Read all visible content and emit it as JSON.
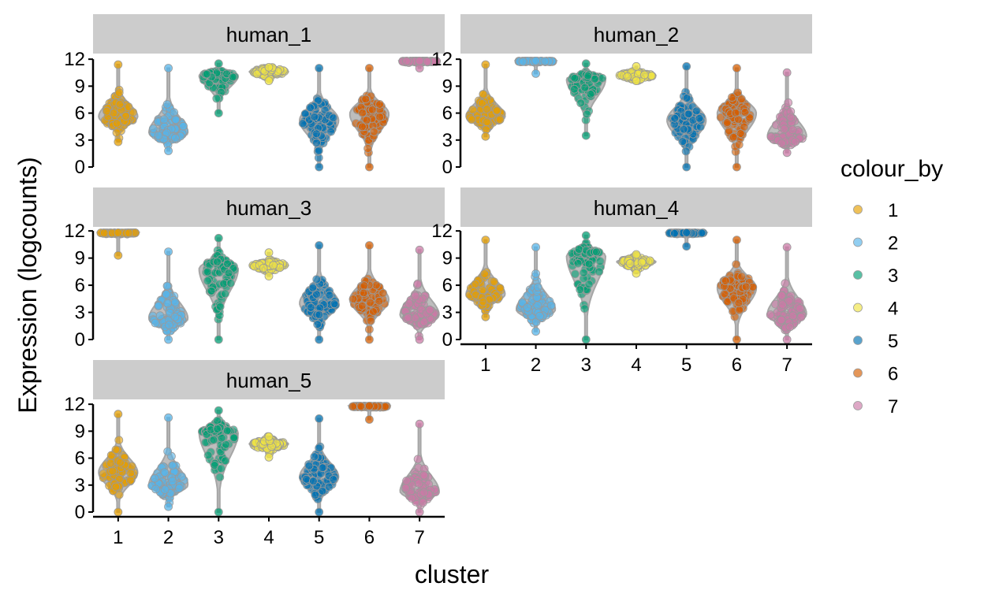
{
  "chart_data": {
    "type": "violin",
    "xlabel": "cluster",
    "ylabel": "Expression (logcounts)",
    "categories": [
      "1",
      "2",
      "3",
      "4",
      "5",
      "6",
      "7"
    ],
    "ylim": [
      0,
      12
    ],
    "yticks": [
      0,
      3,
      6,
      9,
      12
    ],
    "grid": false,
    "legend": {
      "title": "colour_by",
      "position": "right",
      "entries": [
        "1",
        "2",
        "3",
        "4",
        "5",
        "6",
        "7"
      ],
      "colors": [
        "#E69F00",
        "#56B4E9",
        "#009E73",
        "#F0E442",
        "#0072B2",
        "#D55E00",
        "#CC79A7"
      ]
    },
    "facets": [
      {
        "name": "human_1",
        "series": [
          {
            "cluster": "1",
            "median": 5.6,
            "min": 2.8,
            "max": 11.4,
            "mode": 5.6
          },
          {
            "cluster": "2",
            "median": 3.9,
            "min": 1.8,
            "max": 11.0,
            "mode": 3.8
          },
          {
            "cluster": "3",
            "median": 10.2,
            "min": 6.0,
            "max": 11.5,
            "mode": 10.2
          },
          {
            "cluster": "4",
            "median": 10.6,
            "min": 9.6,
            "max": 11.1,
            "mode": 10.6
          },
          {
            "cluster": "5",
            "median": 5.0,
            "min": 0.0,
            "max": 11.0,
            "mode": 5.2
          },
          {
            "cluster": "6",
            "median": 5.9,
            "min": 0.0,
            "max": 11.0,
            "mode": 5.9
          },
          {
            "cluster": "7",
            "median": 11.8,
            "min": 11.0,
            "max": 11.8,
            "mode": 11.8
          }
        ]
      },
      {
        "name": "human_2",
        "series": [
          {
            "cluster": "1",
            "median": 5.7,
            "min": 3.4,
            "max": 11.4,
            "mode": 5.6
          },
          {
            "cluster": "2",
            "median": 11.8,
            "min": 10.4,
            "max": 11.8,
            "mode": 11.8
          },
          {
            "cluster": "3",
            "median": 9.8,
            "min": 3.5,
            "max": 11.5,
            "mode": 9.8
          },
          {
            "cluster": "4",
            "median": 10.3,
            "min": 9.6,
            "max": 11.2,
            "mode": 10.2
          },
          {
            "cluster": "5",
            "median": 5.1,
            "min": 0.0,
            "max": 11.2,
            "mode": 5.2
          },
          {
            "cluster": "6",
            "median": 5.9,
            "min": 0.0,
            "max": 11.0,
            "mode": 6.0
          },
          {
            "cluster": "7",
            "median": 3.5,
            "min": 1.6,
            "max": 10.5,
            "mode": 3.4
          }
        ]
      },
      {
        "name": "human_3",
        "series": [
          {
            "cluster": "1",
            "median": 11.8,
            "min": 9.3,
            "max": 11.8,
            "mode": 11.8
          },
          {
            "cluster": "2",
            "median": 2.4,
            "min": 0.0,
            "max": 9.7,
            "mode": 2.3
          },
          {
            "cluster": "3",
            "median": 7.8,
            "min": 0.0,
            "max": 11.2,
            "mode": 7.8
          },
          {
            "cluster": "4",
            "median": 8.2,
            "min": 7.0,
            "max": 9.6,
            "mode": 8.2
          },
          {
            "cluster": "5",
            "median": 4.0,
            "min": 0.0,
            "max": 10.4,
            "mode": 4.0
          },
          {
            "cluster": "6",
            "median": 4.4,
            "min": 0.0,
            "max": 10.4,
            "mode": 4.4
          },
          {
            "cluster": "7",
            "median": 2.8,
            "min": 0.0,
            "max": 9.9,
            "mode": 2.7
          }
        ]
      },
      {
        "name": "human_4",
        "series": [
          {
            "cluster": "1",
            "median": 5.0,
            "min": 2.5,
            "max": 11.0,
            "mode": 5.0
          },
          {
            "cluster": "2",
            "median": 3.2,
            "min": 0.9,
            "max": 10.2,
            "mode": 3.3
          },
          {
            "cluster": "3",
            "median": 9.2,
            "min": 0.0,
            "max": 11.5,
            "mode": 9.3
          },
          {
            "cluster": "4",
            "median": 8.6,
            "min": 7.3,
            "max": 9.4,
            "mode": 8.6
          },
          {
            "cluster": "5",
            "median": 11.8,
            "min": 10.3,
            "max": 11.8,
            "mode": 11.8
          },
          {
            "cluster": "6",
            "median": 5.6,
            "min": 0.0,
            "max": 11.0,
            "mode": 5.7
          },
          {
            "cluster": "7",
            "median": 2.8,
            "min": 0.0,
            "max": 10.2,
            "mode": 2.8
          }
        ]
      },
      {
        "name": "human_5",
        "series": [
          {
            "cluster": "1",
            "median": 4.5,
            "min": 0.0,
            "max": 10.9,
            "mode": 4.4
          },
          {
            "cluster": "2",
            "median": 2.9,
            "min": 0.6,
            "max": 10.5,
            "mode": 3.0
          },
          {
            "cluster": "3",
            "median": 8.8,
            "min": 0.0,
            "max": 11.3,
            "mode": 8.9
          },
          {
            "cluster": "4",
            "median": 7.6,
            "min": 6.1,
            "max": 8.4,
            "mode": 7.6
          },
          {
            "cluster": "5",
            "median": 3.9,
            "min": 0.0,
            "max": 10.4,
            "mode": 3.9
          },
          {
            "cluster": "6",
            "median": 11.8,
            "min": 10.3,
            "max": 11.8,
            "mode": 11.8
          },
          {
            "cluster": "7",
            "median": 2.3,
            "min": 0.0,
            "max": 9.8,
            "mode": 2.3
          }
        ]
      }
    ]
  }
}
